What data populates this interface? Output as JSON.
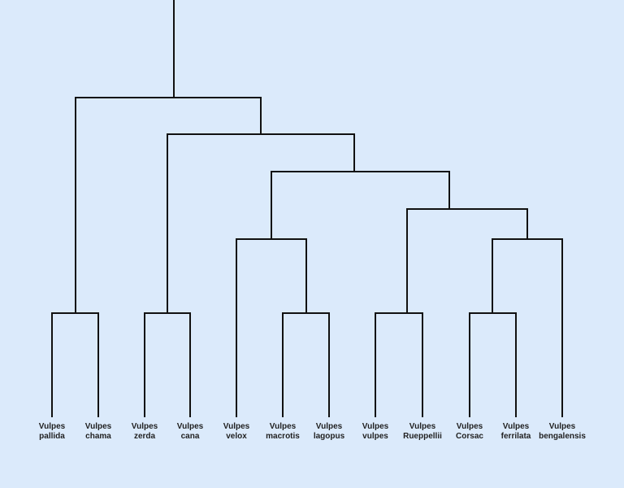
{
  "diagram": {
    "type": "dendrogram",
    "genus": "Vulpes",
    "leaves": [
      {
        "genus": "Vulpes",
        "species": "pallida"
      },
      {
        "genus": "Vulpes",
        "species": "chama"
      },
      {
        "genus": "Vulpes",
        "species": "zerda"
      },
      {
        "genus": "Vulpes",
        "species": "cana"
      },
      {
        "genus": "Vulpes",
        "species": "velox"
      },
      {
        "genus": "Vulpes",
        "species": "macrotis"
      },
      {
        "genus": "Vulpes",
        "species": "lagopus"
      },
      {
        "genus": "Vulpes",
        "species": "vulpes"
      },
      {
        "genus": "Vulpes",
        "species": "Rueppellii"
      },
      {
        "genus": "Vulpes",
        "species": "Corsac"
      },
      {
        "genus": "Vulpes",
        "species": "ferrilata"
      },
      {
        "genus": "Vulpes",
        "species": "bengalensis"
      }
    ],
    "topology": "((pallida,chama),((zerda,cana),((velox,(macrotis,lagopus)),((vulpes,Rueppellii),((Corsac,ferrilata),bengalensis)))))",
    "colors": {
      "background": "#dbeafb",
      "line": "#111111",
      "text": "#1f1f1f"
    }
  }
}
